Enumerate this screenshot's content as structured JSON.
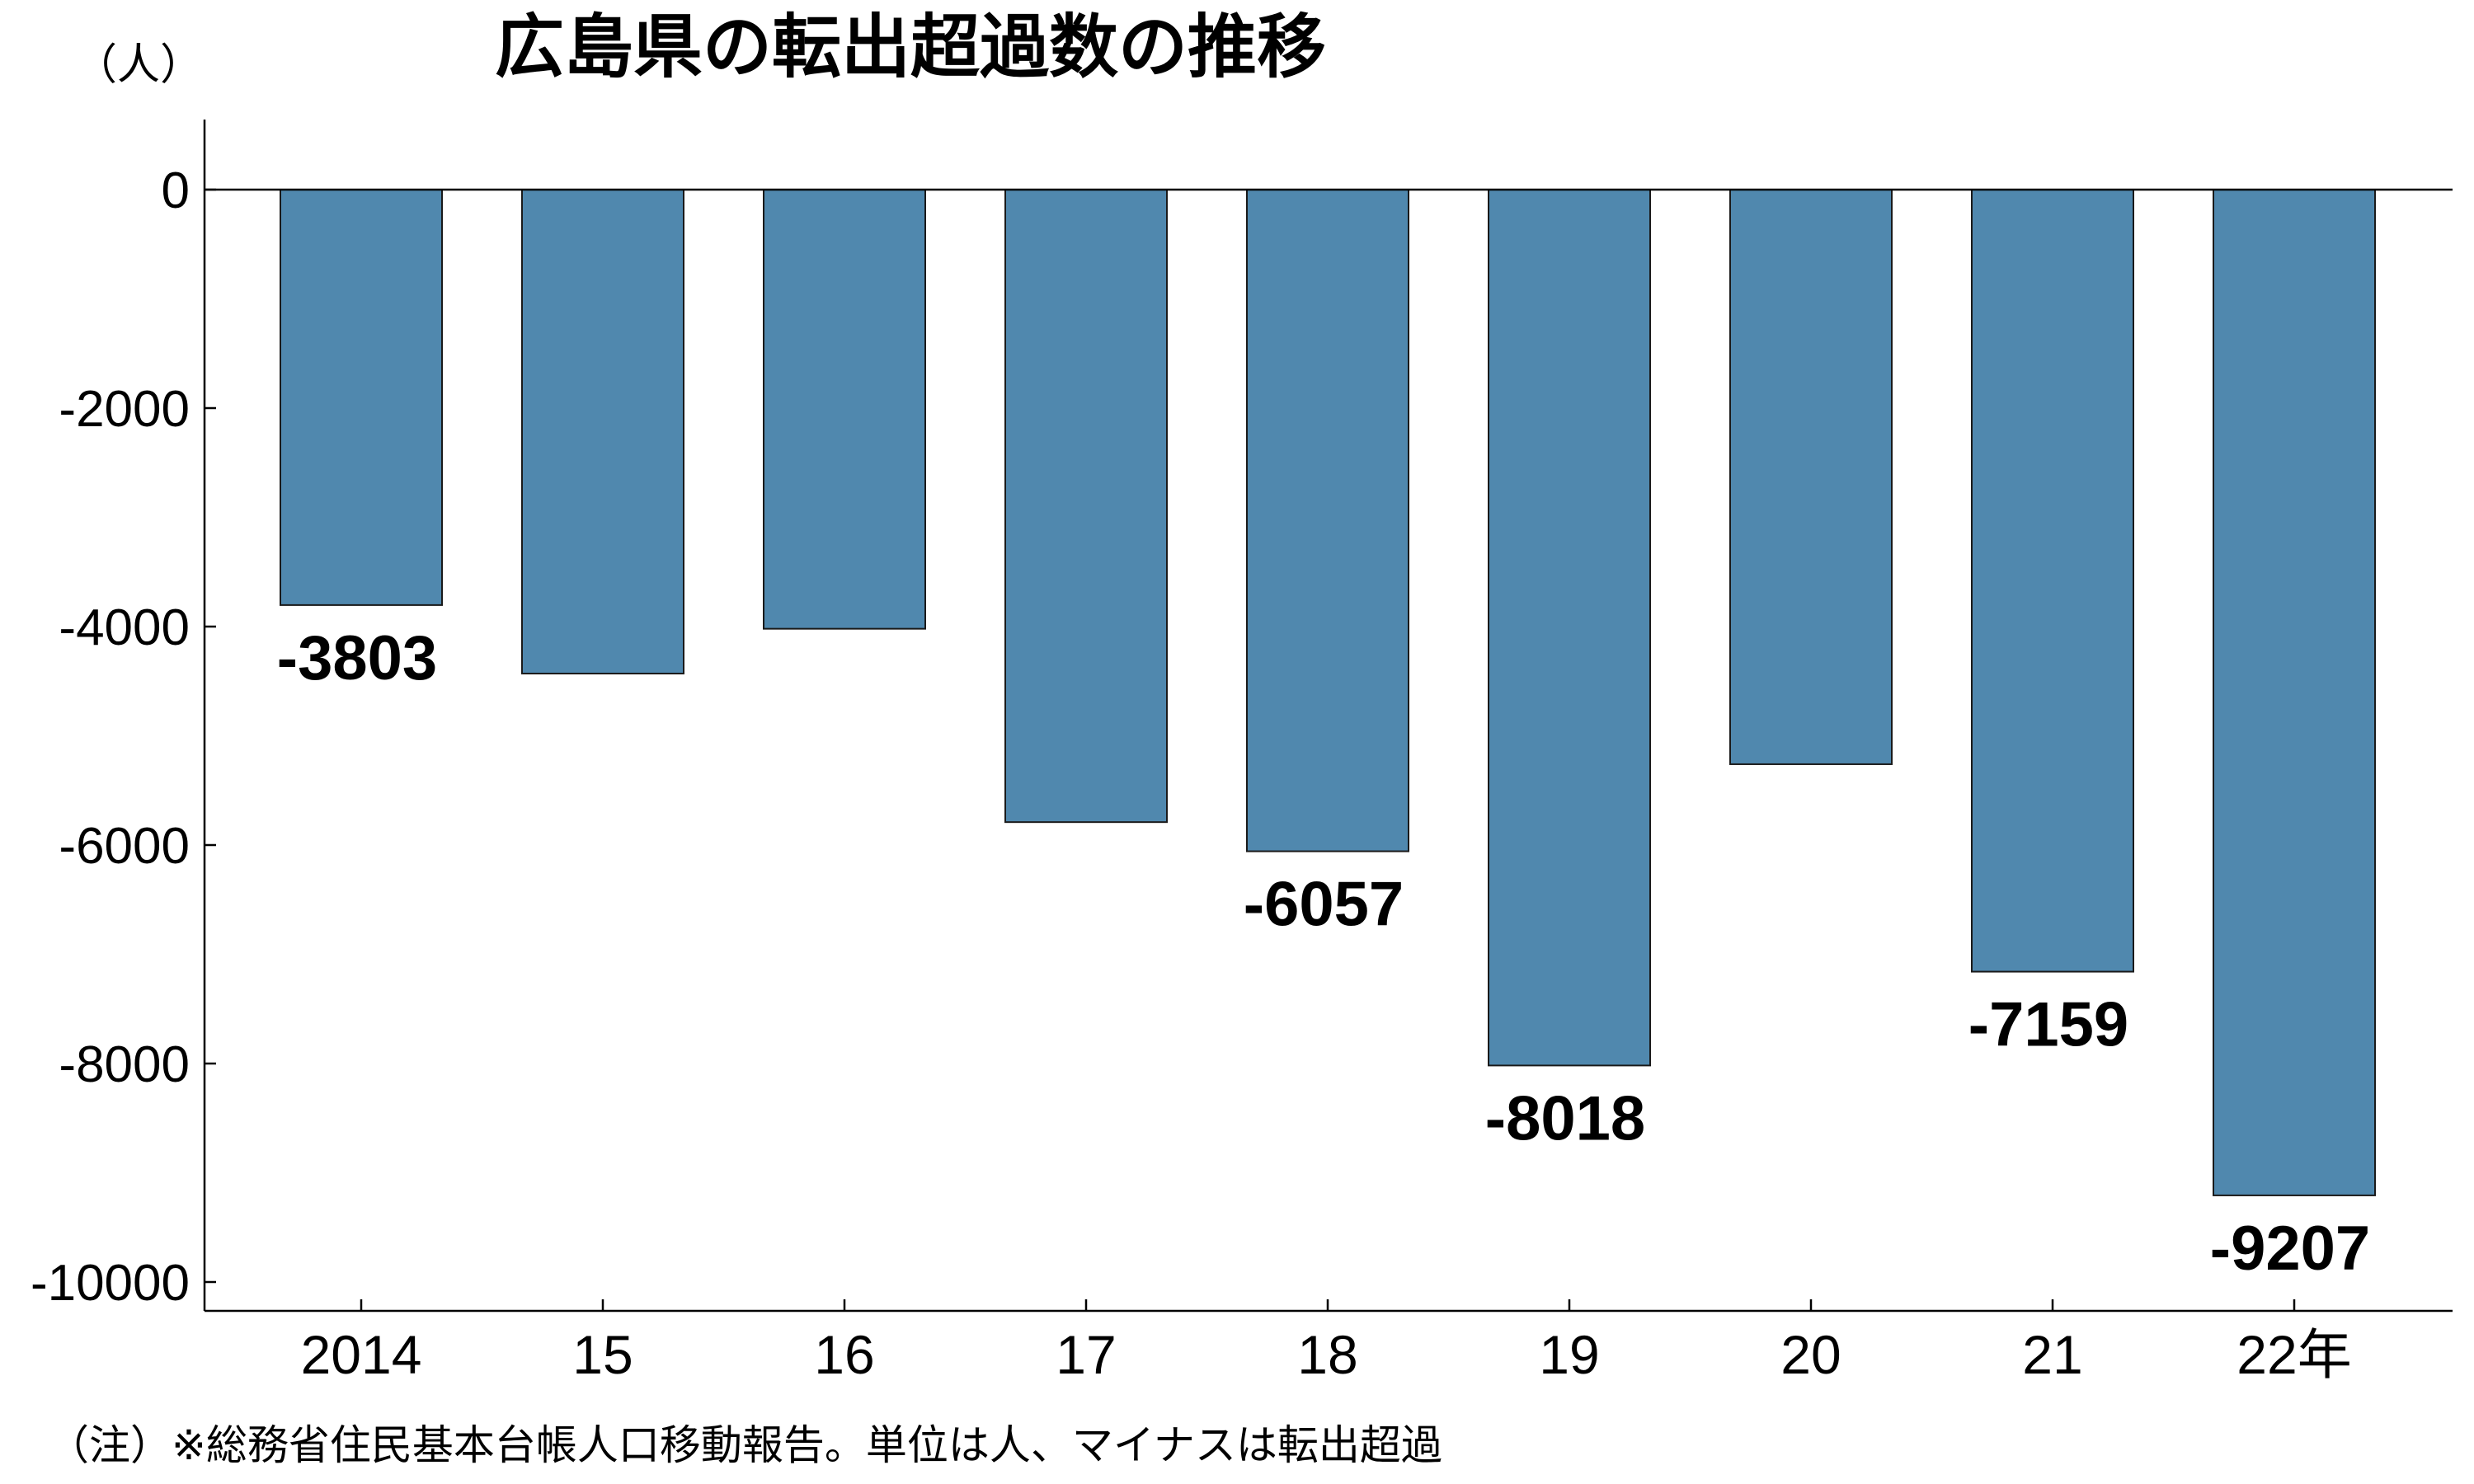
{
  "chart_data": {
    "type": "bar",
    "title": "広島県の転出超過数の推移",
    "ylabel": "（人）",
    "xlabel": "",
    "categories": [
      "2014",
      "15",
      "16",
      "17",
      "18",
      "19",
      "20",
      "21",
      "22年"
    ],
    "values": [
      -3803,
      -4430,
      -4020,
      -5790,
      -6057,
      -8018,
      -5260,
      -7159,
      -9207
    ],
    "data_labels": [
      "-3803",
      "",
      "",
      "",
      "-6057",
      "-8018",
      "",
      "-7159",
      "-9207"
    ],
    "ylim": [
      -10400,
      600
    ],
    "yticks": [
      0,
      -2000,
      -4000,
      -6000,
      -8000,
      -10000
    ],
    "grid": false,
    "bar_color": "#5088ae",
    "bar_edge_color": "#1a1a1a"
  },
  "footnote": "（注）※総務省住民基本台帳人口移動報告。単位は人、マイナスは転出超過"
}
